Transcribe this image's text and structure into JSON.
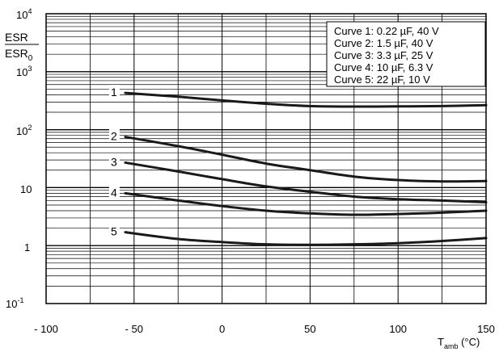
{
  "chart_data": {
    "type": "line",
    "yscale": "log",
    "xlim": [
      -100,
      150
    ],
    "ylim": [
      0.1,
      10000
    ],
    "grid": true,
    "legend_position": "top-right",
    "x_ticks": [
      -100,
      -50,
      0,
      50,
      100,
      150
    ],
    "x_tick_labels": [
      "- 100",
      "- 50",
      "0",
      "50",
      "100",
      "150"
    ],
    "y_ticks": [
      0.1,
      1,
      10,
      100,
      1000,
      10000
    ],
    "ylabel": {
      "top": "ESR",
      "bottom": "ESR",
      "bottom_sub": "0"
    },
    "xlabel": {
      "main": "T",
      "sub": "amb",
      "unit": " (°C)"
    },
    "y_tick_labels": [
      {
        "base": "10",
        "sup": "-1"
      },
      {
        "base": "1",
        "sup": ""
      },
      {
        "base": "10",
        "sup": ""
      },
      {
        "base": "10",
        "sup": "2"
      },
      {
        "base": "10",
        "sup": "3"
      },
      {
        "base": "10",
        "sup": "4"
      }
    ],
    "legend": [
      "Curve 1: 0.22 µF, 40 V",
      "Curve 2: 1.5 µF, 40 V",
      "Curve 3: 3.3 µF, 25 V",
      "Curve 4: 10 µF, 6.3 V",
      "Curve 5: 22 µF, 10 V"
    ],
    "series": [
      {
        "label": "1",
        "x": [
          -55,
          -25,
          0,
          25,
          50,
          75,
          100,
          125,
          150
        ],
        "y": [
          430,
          370,
          320,
          280,
          255,
          250,
          252,
          255,
          265
        ]
      },
      {
        "label": "2",
        "x": [
          -55,
          -25,
          0,
          25,
          50,
          75,
          100,
          125,
          150
        ],
        "y": [
          75,
          52,
          37,
          26,
          20,
          15.5,
          13.5,
          12.8,
          13
        ]
      },
      {
        "label": "3",
        "x": [
          -55,
          -25,
          0,
          25,
          50,
          75,
          100,
          125,
          150
        ],
        "y": [
          27,
          19,
          14,
          10.5,
          8.5,
          7,
          6.3,
          6,
          5.6
        ]
      },
      {
        "label": "4",
        "x": [
          -55,
          -25,
          0,
          25,
          50,
          75,
          100,
          125,
          150
        ],
        "y": [
          8,
          6,
          4.8,
          4,
          3.6,
          3.4,
          3.5,
          3.7,
          4
        ]
      },
      {
        "label": "5",
        "x": [
          -55,
          -25,
          0,
          25,
          50,
          75,
          100,
          125,
          150
        ],
        "y": [
          1.7,
          1.3,
          1.15,
          1.05,
          1.03,
          1.05,
          1.1,
          1.2,
          1.35
        ]
      }
    ]
  }
}
